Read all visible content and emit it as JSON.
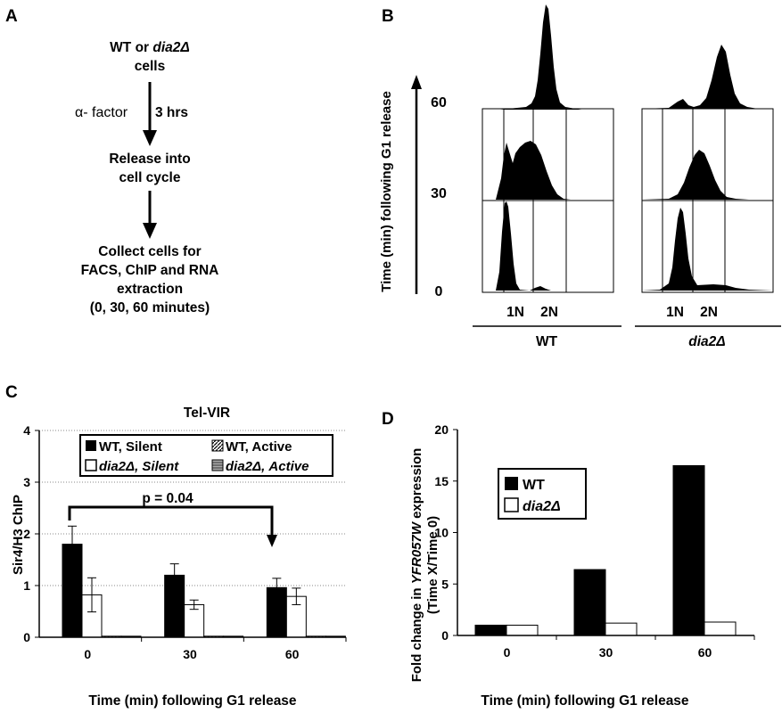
{
  "panels": {
    "a": "A",
    "b": "B",
    "c": "C",
    "d": "D"
  },
  "flowchart": {
    "box1": [
      "WT or dia2Δ",
      "cells"
    ],
    "factor": "α- factor",
    "duration": "3 hrs",
    "box2": [
      "Release into",
      "cell cycle"
    ],
    "box3": [
      "Collect cells for",
      "FACS, ChIP and RNA",
      "extraction",
      "(0, 30, 60 minutes)"
    ]
  },
  "facs": {
    "time_axis_label": "Time (min) following G1 release",
    "time_ticks": [
      "60",
      "30",
      "0"
    ],
    "dna_labels": [
      "1N",
      "2N"
    ],
    "strains": [
      "WT",
      "dia2Δ"
    ]
  },
  "chart_data": [
    {
      "type": "bar",
      "title": "Tel-VIR",
      "categories": [
        "0",
        "30",
        "60"
      ],
      "xlabel": "Time (min) following G1 release",
      "ylabel": "Sir4/H3 ChIP",
      "ylim": [
        0,
        4
      ],
      "yticks": [
        "0",
        "1",
        "2",
        "3",
        "4"
      ],
      "grid": true,
      "legend_position": "top",
      "series": [
        {
          "name": "WT, Silent",
          "values": [
            1.8,
            1.2,
            0.96
          ],
          "errors": [
            0.35,
            0.22,
            0.18
          ],
          "color": "#000000",
          "pattern": "solid"
        },
        {
          "name": "dia2Δ, Silent",
          "values": [
            0.82,
            0.63,
            0.79
          ],
          "errors": [
            0.33,
            0.09,
            0.16
          ],
          "color": "#ffffff",
          "pattern": "open"
        },
        {
          "name": "WT, Active",
          "values": [
            0.02,
            0.02,
            0.02
          ],
          "color": "#555555",
          "pattern": "hatched"
        },
        {
          "name": "dia2Δ, Active",
          "values": [
            0.02,
            0.02,
            0.02
          ],
          "color": "#888888",
          "pattern": "striped"
        }
      ],
      "annotation": "p = 0.04"
    },
    {
      "type": "bar",
      "categories": [
        "0",
        "30",
        "60"
      ],
      "xlabel": "Time (min) following G1 release",
      "ylabel": [
        "Fold change in ",
        "YFR057W",
        " expression",
        "(Time X/Time 0)"
      ],
      "ylim": [
        0,
        20
      ],
      "yticks": [
        "0",
        "5",
        "10",
        "15",
        "20"
      ],
      "grid": false,
      "legend_position": "top-left",
      "series": [
        {
          "name": "WT",
          "values": [
            1,
            6.4,
            16.5
          ],
          "color": "#000000"
        },
        {
          "name": "dia2Δ",
          "values": [
            1,
            1.2,
            1.3
          ],
          "color": "#ffffff"
        }
      ]
    }
  ]
}
